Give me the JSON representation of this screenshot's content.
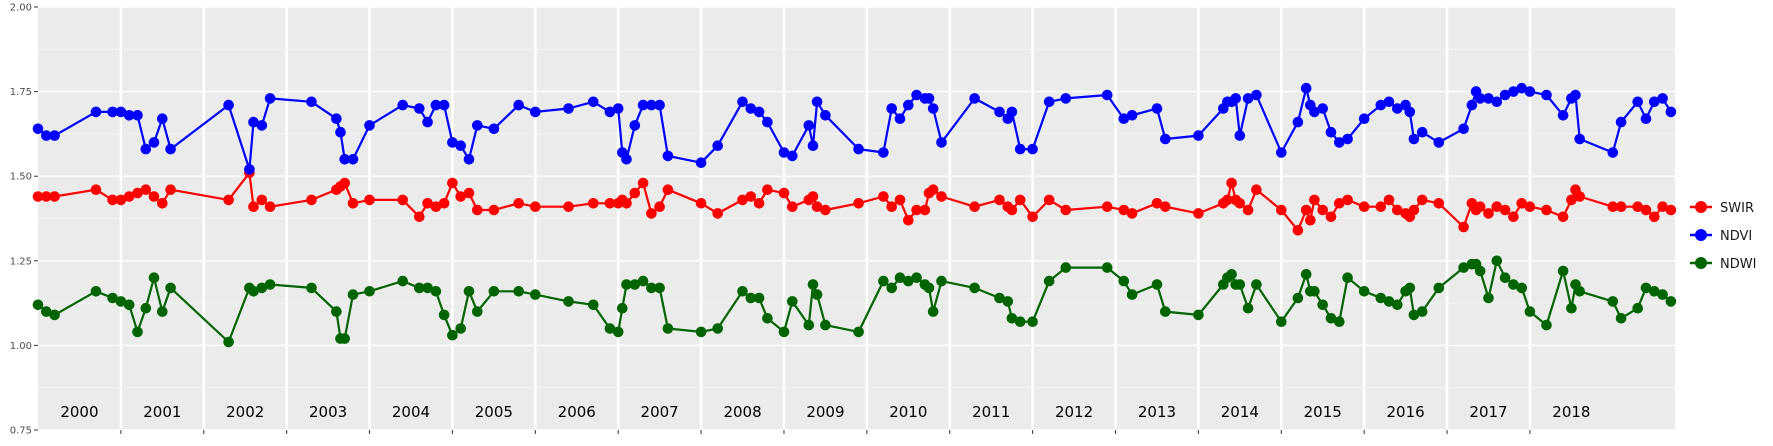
{
  "chart_data": {
    "type": "line",
    "title": "",
    "xlabel": "",
    "ylabel": "",
    "xlim": [
      2000.0,
      2018.95
    ],
    "ylim": [
      0.75,
      2.0
    ],
    "yticks": [
      "0.75",
      "1.00",
      "1.25",
      "1.50",
      "1.75",
      "2.00"
    ],
    "year_labels": [
      "2000",
      "2001",
      "2002",
      "2003",
      "2004",
      "2005",
      "2006",
      "2007",
      "2008",
      "2009",
      "2010",
      "2011",
      "2012",
      "2013",
      "2014",
      "2015",
      "2016",
      "2017",
      "2018"
    ],
    "grid": true,
    "legend_position": "right",
    "series": [
      {
        "name": "SWIR",
        "color": "#ff0000",
        "x": [
          2000.0,
          2000.1,
          2000.2,
          2000.7,
          2000.9,
          2001.0,
          2001.1,
          2001.2,
          2001.3,
          2001.4,
          2001.5,
          2001.6,
          2002.3,
          2002.55,
          2002.6,
          2002.7,
          2002.8,
          2003.3,
          2003.6,
          2003.65,
          2003.7,
          2003.8,
          2004.0,
          2004.4,
          2004.6,
          2004.7,
          2004.8,
          2004.9,
          2005.0,
          2005.1,
          2005.2,
          2005.3,
          2005.5,
          2005.8,
          2006.0,
          2006.4,
          2006.7,
          2006.9,
          2007.0,
          2007.05,
          2007.1,
          2007.2,
          2007.3,
          2007.4,
          2007.5,
          2007.6,
          2008.0,
          2008.2,
          2008.5,
          2008.6,
          2008.7,
          2008.8,
          2009.0,
          2009.1,
          2009.3,
          2009.35,
          2009.4,
          2009.5,
          2009.9,
          2010.2,
          2010.3,
          2010.4,
          2010.5,
          2010.6,
          2010.7,
          2010.75,
          2010.8,
          2010.9,
          2011.3,
          2011.6,
          2011.7,
          2011.75,
          2011.85,
          2012.0,
          2012.2,
          2012.4,
          2012.9,
          2013.1,
          2013.2,
          2013.5,
          2013.6,
          2014.0,
          2014.3,
          2014.35,
          2014.4,
          2014.45,
          2014.5,
          2014.6,
          2014.7,
          2015.0,
          2015.2,
          2015.3,
          2015.35,
          2015.4,
          2015.5,
          2015.6,
          2015.7,
          2015.8,
          2016.0,
          2016.2,
          2016.3,
          2016.4,
          2016.5,
          2016.55,
          2016.6,
          2016.7,
          2016.9,
          2017.2,
          2017.3,
          2017.35,
          2017.4,
          2017.5,
          2017.6,
          2017.7,
          2017.8,
          2017.9,
          2018.0,
          2018.2,
          2018.4,
          2018.5,
          2018.55,
          2018.6,
          2019.0,
          2019.1,
          2019.3,
          2019.4,
          2019.5,
          2019.6,
          2019.7
        ],
        "y": [
          1.44,
          1.44,
          1.44,
          1.46,
          1.43,
          1.43,
          1.44,
          1.45,
          1.46,
          1.44,
          1.42,
          1.46,
          1.43,
          1.51,
          1.41,
          1.43,
          1.41,
          1.43,
          1.46,
          1.47,
          1.48,
          1.42,
          1.43,
          1.43,
          1.38,
          1.42,
          1.41,
          1.42,
          1.48,
          1.44,
          1.45,
          1.4,
          1.4,
          1.42,
          1.41,
          1.41,
          1.42,
          1.42,
          1.42,
          1.43,
          1.42,
          1.45,
          1.48,
          1.39,
          1.41,
          1.46,
          1.42,
          1.39,
          1.43,
          1.44,
          1.42,
          1.46,
          1.45,
          1.41,
          1.43,
          1.44,
          1.41,
          1.4,
          1.42,
          1.44,
          1.41,
          1.43,
          1.37,
          1.4,
          1.4,
          1.45,
          1.46,
          1.44,
          1.41,
          1.43,
          1.41,
          1.4,
          1.43,
          1.38,
          1.43,
          1.4,
          1.41,
          1.4,
          1.39,
          1.42,
          1.41,
          1.39,
          1.42,
          1.43,
          1.48,
          1.43,
          1.42,
          1.4,
          1.46,
          1.4,
          1.34,
          1.4,
          1.37,
          1.43,
          1.4,
          1.38,
          1.42,
          1.43,
          1.41,
          1.41,
          1.43,
          1.4,
          1.39,
          1.38,
          1.4,
          1.43,
          1.42,
          1.35,
          1.42,
          1.4,
          1.41,
          1.39,
          1.41,
          1.4,
          1.38,
          1.42,
          1.41,
          1.4,
          1.38,
          1.43,
          1.46,
          1.44,
          1.41,
          1.41,
          1.41,
          1.4,
          1.38,
          1.41,
          1.4
        ],
        "note": "visible_on_plot"
      },
      {
        "name": "NDVI",
        "color": "#0000ff",
        "x": [
          2000.0,
          2000.1,
          2000.2,
          2000.7,
          2000.9,
          2001.0,
          2001.1,
          2001.2,
          2001.3,
          2001.4,
          2001.5,
          2001.6,
          2002.3,
          2002.55,
          2002.6,
          2002.7,
          2002.8,
          2003.3,
          2003.6,
          2003.65,
          2003.7,
          2003.8,
          2004.0,
          2004.4,
          2004.6,
          2004.7,
          2004.8,
          2004.9,
          2005.0,
          2005.1,
          2005.2,
          2005.3,
          2005.5,
          2005.8,
          2006.0,
          2006.4,
          2006.7,
          2006.9,
          2007.0,
          2007.05,
          2007.1,
          2007.2,
          2007.3,
          2007.4,
          2007.5,
          2007.6,
          2008.0,
          2008.2,
          2008.5,
          2008.6,
          2008.7,
          2008.8,
          2009.0,
          2009.1,
          2009.3,
          2009.35,
          2009.4,
          2009.5,
          2009.9,
          2010.2,
          2010.3,
          2010.4,
          2010.5,
          2010.6,
          2010.7,
          2010.75,
          2010.8,
          2010.9,
          2011.3,
          2011.6,
          2011.7,
          2011.75,
          2011.85,
          2012.0,
          2012.2,
          2012.4,
          2012.9,
          2013.1,
          2013.2,
          2013.5,
          2013.6,
          2014.0,
          2014.3,
          2014.35,
          2014.4,
          2014.45,
          2014.5,
          2014.6,
          2014.7,
          2015.0,
          2015.2,
          2015.3,
          2015.35,
          2015.4,
          2015.5,
          2015.6,
          2015.7,
          2015.8,
          2016.0,
          2016.2,
          2016.3,
          2016.4,
          2016.5,
          2016.55,
          2016.6,
          2016.7,
          2016.9,
          2017.2,
          2017.3,
          2017.35,
          2017.4,
          2017.5,
          2017.6,
          2017.7,
          2017.8,
          2017.9,
          2018.0,
          2018.2,
          2018.4,
          2018.5,
          2018.55,
          2018.6,
          2019.0,
          2019.1,
          2019.3,
          2019.4,
          2019.5,
          2019.6,
          2019.7
        ],
        "y": [
          1.64,
          1.62,
          1.62,
          1.69,
          1.69,
          1.69,
          1.68,
          1.68,
          1.58,
          1.6,
          1.67,
          1.58,
          1.71,
          1.52,
          1.66,
          1.65,
          1.73,
          1.72,
          1.67,
          1.63,
          1.55,
          1.55,
          1.65,
          1.71,
          1.7,
          1.66,
          1.71,
          1.71,
          1.6,
          1.59,
          1.55,
          1.65,
          1.64,
          1.71,
          1.69,
          1.7,
          1.72,
          1.69,
          1.7,
          1.57,
          1.55,
          1.65,
          1.71,
          1.71,
          1.71,
          1.56,
          1.54,
          1.59,
          1.72,
          1.7,
          1.69,
          1.66,
          1.57,
          1.56,
          1.65,
          1.59,
          1.72,
          1.68,
          1.58,
          1.57,
          1.7,
          1.67,
          1.71,
          1.74,
          1.73,
          1.73,
          1.7,
          1.6,
          1.73,
          1.69,
          1.67,
          1.69,
          1.58,
          1.58,
          1.72,
          1.73,
          1.74,
          1.67,
          1.68,
          1.7,
          1.61,
          1.62,
          1.7,
          1.72,
          1.72,
          1.73,
          1.62,
          1.73,
          1.74,
          1.57,
          1.66,
          1.76,
          1.71,
          1.69,
          1.7,
          1.63,
          1.6,
          1.61,
          1.67,
          1.71,
          1.72,
          1.7,
          1.71,
          1.69,
          1.61,
          1.63,
          1.6,
          1.64,
          1.71,
          1.75,
          1.73,
          1.73,
          1.72,
          1.74,
          1.75,
          1.76,
          1.75,
          1.74,
          1.68,
          1.73,
          1.74,
          1.61,
          1.57,
          1.66,
          1.72,
          1.67,
          1.72,
          1.73,
          1.69
        ],
        "note": "visible_on_plot"
      },
      {
        "name": "NDWI",
        "color": "#006400",
        "x": [
          2000.0,
          2000.1,
          2000.2,
          2000.7,
          2000.9,
          2001.0,
          2001.1,
          2001.2,
          2001.3,
          2001.4,
          2001.5,
          2001.6,
          2002.3,
          2002.55,
          2002.6,
          2002.7,
          2002.8,
          2003.3,
          2003.6,
          2003.65,
          2003.7,
          2003.8,
          2004.0,
          2004.4,
          2004.6,
          2004.7,
          2004.8,
          2004.9,
          2005.0,
          2005.1,
          2005.2,
          2005.3,
          2005.5,
          2005.8,
          2006.0,
          2006.4,
          2006.7,
          2006.9,
          2007.0,
          2007.05,
          2007.1,
          2007.2,
          2007.3,
          2007.4,
          2007.5,
          2007.6,
          2008.0,
          2008.2,
          2008.5,
          2008.6,
          2008.7,
          2008.8,
          2009.0,
          2009.1,
          2009.3,
          2009.35,
          2009.4,
          2009.5,
          2009.9,
          2010.2,
          2010.3,
          2010.4,
          2010.5,
          2010.6,
          2010.7,
          2010.75,
          2010.8,
          2010.9,
          2011.3,
          2011.6,
          2011.7,
          2011.75,
          2011.85,
          2012.0,
          2012.2,
          2012.4,
          2012.9,
          2013.1,
          2013.2,
          2013.5,
          2013.6,
          2014.0,
          2014.3,
          2014.35,
          2014.4,
          2014.45,
          2014.5,
          2014.6,
          2014.7,
          2015.0,
          2015.2,
          2015.3,
          2015.35,
          2015.4,
          2015.5,
          2015.6,
          2015.7,
          2015.8,
          2016.0,
          2016.2,
          2016.3,
          2016.4,
          2016.5,
          2016.55,
          2016.6,
          2016.7,
          2016.9,
          2017.2,
          2017.3,
          2017.35,
          2017.4,
          2017.5,
          2017.6,
          2017.7,
          2017.8,
          2017.9,
          2018.0,
          2018.2,
          2018.4,
          2018.5,
          2018.55,
          2018.6,
          2019.0,
          2019.1,
          2019.3,
          2019.4,
          2019.5,
          2019.6,
          2019.7
        ],
        "y": [
          1.12,
          1.1,
          1.09,
          1.16,
          1.14,
          1.13,
          1.12,
          1.04,
          1.11,
          1.2,
          1.1,
          1.17,
          1.01,
          1.17,
          1.16,
          1.17,
          1.18,
          1.17,
          1.1,
          1.02,
          1.02,
          1.15,
          1.16,
          1.19,
          1.17,
          1.17,
          1.16,
          1.09,
          1.03,
          1.05,
          1.16,
          1.1,
          1.16,
          1.16,
          1.15,
          1.13,
          1.12,
          1.05,
          1.04,
          1.11,
          1.18,
          1.18,
          1.19,
          1.17,
          1.17,
          1.05,
          1.04,
          1.05,
          1.16,
          1.14,
          1.14,
          1.08,
          1.04,
          1.13,
          1.06,
          1.18,
          1.15,
          1.06,
          1.04,
          1.19,
          1.17,
          1.2,
          1.19,
          1.2,
          1.18,
          1.17,
          1.1,
          1.19,
          1.17,
          1.14,
          1.13,
          1.08,
          1.07,
          1.07,
          1.19,
          1.23,
          1.23,
          1.19,
          1.15,
          1.18,
          1.1,
          1.09,
          1.18,
          1.2,
          1.21,
          1.18,
          1.18,
          1.11,
          1.18,
          1.07,
          1.14,
          1.21,
          1.16,
          1.16,
          1.12,
          1.08,
          1.07,
          1.2,
          1.16,
          1.14,
          1.13,
          1.12,
          1.16,
          1.17,
          1.09,
          1.1,
          1.17,
          1.23,
          1.24,
          1.24,
          1.22,
          1.14,
          1.25,
          1.2,
          1.18,
          1.17,
          1.1,
          1.06,
          1.22,
          1.11,
          1.18,
          1.16,
          1.13,
          1.08,
          1.11,
          1.17,
          1.16,
          1.15,
          1.13
        ],
        "note": "visible_on_plot"
      }
    ]
  },
  "legend": {
    "items": [
      {
        "label": "SWIR",
        "color": "#ff0000"
      },
      {
        "label": "NDVI",
        "color": "#0000ff"
      },
      {
        "label": "NDWI",
        "color": "#006400"
      }
    ]
  }
}
